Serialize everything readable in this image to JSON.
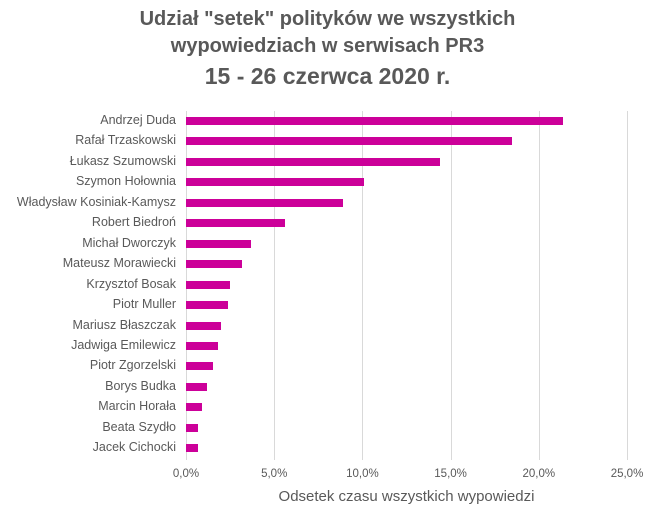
{
  "chart_data": {
    "type": "bar",
    "orientation": "horizontal",
    "title": "Udział \"setek\" polityków we wszystkich wypowiedziach w serwisach PR3",
    "subtitle": "15 - 26 czerwca 2020 r.",
    "xlabel": "Odsetek czasu wszystkich wypowiedzi",
    "ylabel": "",
    "xlim": [
      0,
      25
    ],
    "grid": true,
    "legend": null,
    "bar_color": "#cc0099",
    "x_ticks": [
      "0,0%",
      "5,0%",
      "10,0%",
      "15,0%",
      "20,0%",
      "25,0%"
    ],
    "categories": [
      "Andrzej Duda",
      "Rafał Trzaskowski",
      "Łukasz Szumowski",
      "Szymon Hołownia",
      "Władysław Kosiniak-Kamysz",
      "Robert Biedroń",
      "Michał Dworczyk",
      "Mateusz Morawiecki",
      "Krzysztof Bosak",
      "Piotr Muller",
      "Mariusz Błaszczak",
      "Jadwiga Emilewicz",
      "Piotr Zgorzelski",
      "Borys Budka",
      "Marcin Horała",
      "Beata Szydło",
      "Jacek Cichocki"
    ],
    "values": [
      21.4,
      18.5,
      14.4,
      10.1,
      8.9,
      5.6,
      3.7,
      3.2,
      2.5,
      2.4,
      2.0,
      1.8,
      1.55,
      1.2,
      0.9,
      0.7,
      0.7
    ]
  },
  "title": {
    "line1": "Udział \"setek\" polityków we wszystkich",
    "line2": "wypowiedziach w serwisach PR3",
    "line3": "15 - 26 czerwca 2020 r."
  },
  "axis": {
    "title": "Odsetek czasu wszystkich wypowiedzi",
    "ticks": [
      "0,0%",
      "5,0%",
      "10,0%",
      "15,0%",
      "20,0%",
      "25,0%"
    ]
  }
}
